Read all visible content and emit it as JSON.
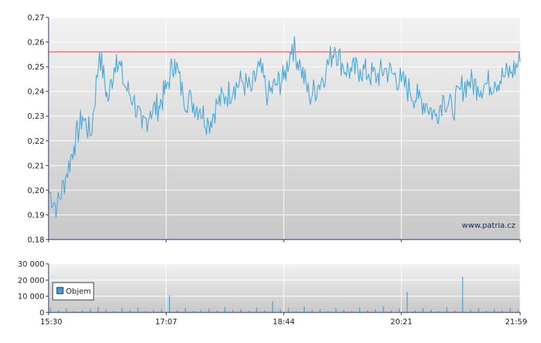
{
  "watermark": "www.patria.cz",
  "legend_label": "Objem",
  "colors": {
    "line": "#4aa8d8",
    "reference": "#e03c3c",
    "volume": "#3d9fd4",
    "axis": "#1a2a5a",
    "grid": "#ffffff",
    "bg_top": "#f2f2f2",
    "bg_bottom": "#c8c8c8"
  },
  "chart_data": [
    {
      "type": "line",
      "title": "",
      "xlabel": "",
      "ylabel": "",
      "ylim": [
        0.18,
        0.27
      ],
      "y_ticks": [
        "0,18",
        "0,19",
        "0,20",
        "0,21",
        "0,22",
        "0,23",
        "0,24",
        "0,25",
        "0,26",
        "0,27"
      ],
      "y_tick_values": [
        0.18,
        0.19,
        0.2,
        0.21,
        0.22,
        0.23,
        0.24,
        0.25,
        0.26,
        0.27
      ],
      "x_ticks": [
        "15:30",
        "17:07",
        "18:44",
        "20:21",
        "21:59"
      ],
      "reference_line": 0.256,
      "grid": true,
      "x": [
        "15:30",
        "15:37",
        "15:44",
        "15:51",
        "15:58",
        "16:05",
        "16:12",
        "16:19",
        "16:26",
        "16:33",
        "16:40",
        "16:47",
        "16:54",
        "17:01",
        "17:07",
        "17:14",
        "17:21",
        "17:28",
        "17:35",
        "17:42",
        "17:49",
        "17:56",
        "18:03",
        "18:10",
        "18:17",
        "18:24",
        "18:31",
        "18:38",
        "18:44",
        "18:51",
        "18:58",
        "19:05",
        "19:12",
        "19:19",
        "19:26",
        "19:33",
        "19:40",
        "19:47",
        "19:54",
        "20:01",
        "20:07",
        "20:14",
        "20:21",
        "20:28",
        "20:35",
        "20:42",
        "20:49",
        "20:56",
        "21:03",
        "21:10",
        "21:17",
        "21:24",
        "21:31",
        "21:38",
        "21:45",
        "21:52",
        "21:59"
      ],
      "values": [
        0.2,
        0.193,
        0.205,
        0.218,
        0.23,
        0.222,
        0.256,
        0.236,
        0.255,
        0.242,
        0.237,
        0.225,
        0.232,
        0.234,
        0.241,
        0.253,
        0.238,
        0.236,
        0.233,
        0.227,
        0.235,
        0.238,
        0.242,
        0.244,
        0.24,
        0.25,
        0.238,
        0.243,
        0.245,
        0.259,
        0.25,
        0.238,
        0.242,
        0.249,
        0.258,
        0.25,
        0.248,
        0.249,
        0.247,
        0.246,
        0.249,
        0.247,
        0.244,
        0.24,
        0.237,
        0.235,
        0.23,
        0.238,
        0.232,
        0.241,
        0.244,
        0.242,
        0.243,
        0.244,
        0.246,
        0.248,
        0.252
      ]
    },
    {
      "type": "bar",
      "title": "",
      "xlabel": "",
      "ylabel": "",
      "ylim": [
        0,
        30000
      ],
      "y_ticks": [
        "0",
        "10 000",
        "20 000",
        "30 000"
      ],
      "y_tick_values": [
        0,
        10000,
        20000,
        30000
      ],
      "x_ticks": [
        "15:30",
        "17:07",
        "18:44",
        "20:21",
        "21:59"
      ],
      "series": [
        {
          "name": "Objem",
          "values": [
            3000,
            1200,
            2500,
            800,
            1500,
            2200,
            3500,
            1800,
            900,
            2600,
            1400,
            3100,
            700,
            1600,
            2000,
            10500,
            1300,
            2800,
            900,
            1700,
            2400,
            1100,
            3300,
            1500,
            2100,
            800,
            2900,
            1200,
            7000,
            1800,
            2500,
            900,
            3600,
            1400,
            2200,
            1000,
            2700,
            1600,
            800,
            3100,
            1300,
            1900,
            4000,
            1500,
            2300,
            12500,
            1100,
            2600,
            1700,
            900,
            3200,
            1400,
            22000,
            1800,
            2500,
            1000,
            2100,
            1300,
            2800,
            1600
          ]
        }
      ],
      "legend": "top-left"
    }
  ]
}
